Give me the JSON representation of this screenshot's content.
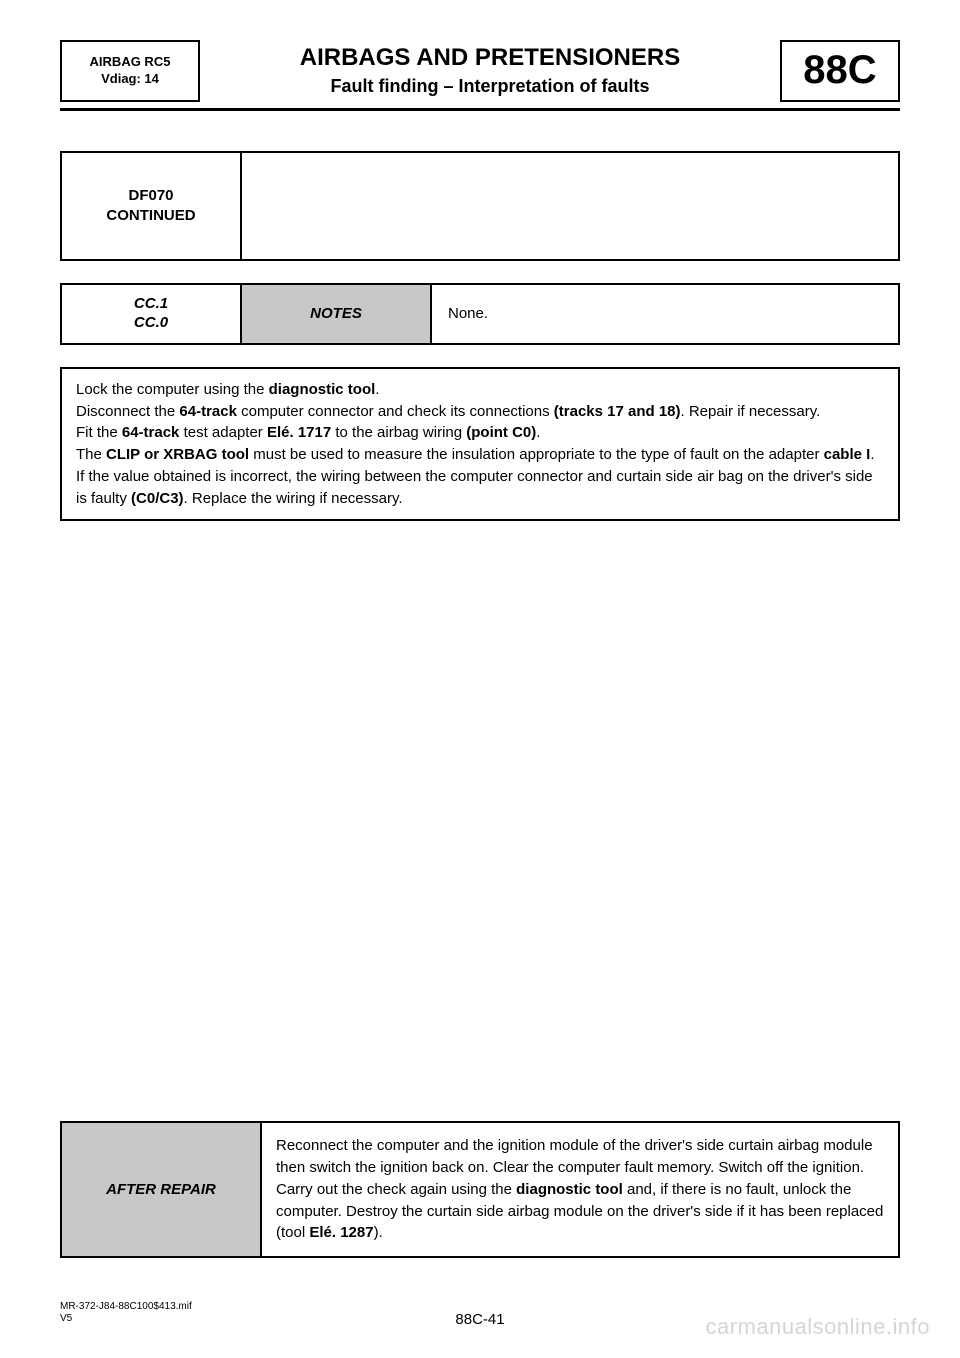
{
  "header": {
    "left_line1": "AIRBAG RC5",
    "left_line2": "Vdiag: 14",
    "title1": "AIRBAGS AND PRETENSIONERS",
    "title2": "Fault finding – Interpretation of faults",
    "code": "88C"
  },
  "fault_box": {
    "line1": "DF070",
    "line2": "CONTINUED"
  },
  "notes": {
    "code1": "CC.1",
    "code2": "CC.0",
    "label": "NOTES",
    "value": "None."
  },
  "instructions": {
    "l1_pre": "Lock the computer using the ",
    "l1_b1": "diagnostic tool",
    "l1_post": ".",
    "l2_pre": "Disconnect the ",
    "l2_b1": "64-track",
    "l2_mid": " computer connector and check its connections ",
    "l2_b2": "(tracks 17 and 18)",
    "l2_post": ". Repair if necessary.",
    "l3_pre": "Fit the ",
    "l3_b1": "64-track",
    "l3_mid1": " test adapter ",
    "l3_b2": "Elé. 1717",
    "l3_mid2": " to the airbag wiring ",
    "l3_b3": "(point C0)",
    "l3_post": ".",
    "l4_pre": "The ",
    "l4_b1": "CLIP or XRBAG tool",
    "l4_mid": " must be used to measure the insulation appropriate to the type of fault on the adapter ",
    "l4_b2": "cable I",
    "l4_post": ".",
    "l5_pre": "If the value obtained is incorrect, the wiring between the computer connector and curtain side air bag on the driver's side is faulty ",
    "l5_b1": "(C0/C3)",
    "l5_post": ". Replace the wiring if necessary."
  },
  "after": {
    "label": "AFTER REPAIR",
    "p1": "Reconnect the computer and the ignition module of the driver's side curtain airbag module then switch the ignition back on. Clear the computer fault memory. Switch off the ignition.",
    "p2_pre": "Carry out the check again using the ",
    "p2_b1": "diagnostic tool",
    "p2_mid": " and, if there is no fault, unlock the computer. Destroy the curtain side airbag module on the driver's side if it has been replaced (tool ",
    "p2_b2": "Elé. 1287",
    "p2_post": ")."
  },
  "footer": {
    "ref1": "MR-372-J84-88C100$413.mif",
    "ref2": "V5",
    "page": "88C-41"
  },
  "watermark": "carmanualsonline.info",
  "colors": {
    "background": "#ffffff",
    "text": "#000000",
    "border": "#000000",
    "grey_fill": "#c8c8c8",
    "watermark": "#d5d5d5"
  }
}
